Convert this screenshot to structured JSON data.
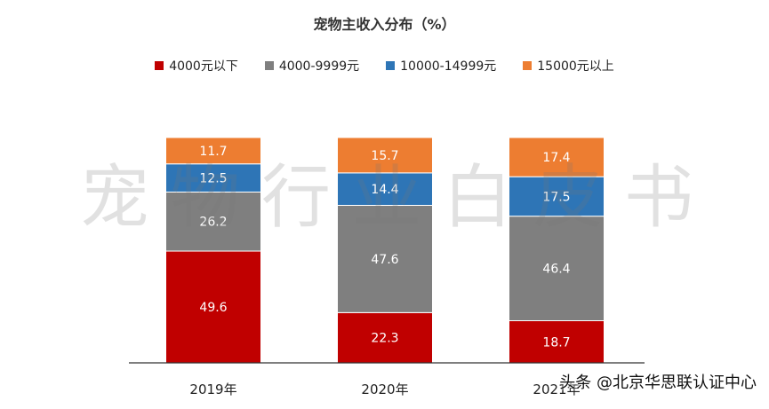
{
  "chart_data": {
    "type": "bar",
    "stacked": true,
    "title": "宠物主收入分布（%）",
    "categories": [
      "2019年",
      "2020年",
      "2021年"
    ],
    "series": [
      {
        "name": "4000元以下",
        "color": "#c00000",
        "values": [
          49.6,
          22.3,
          18.7
        ]
      },
      {
        "name": "4000-9999元",
        "color": "#7f7f7f",
        "values": [
          26.2,
          47.6,
          46.4
        ]
      },
      {
        "name": "10000-14999元",
        "color": "#2e75b6",
        "values": [
          12.5,
          14.4,
          17.5
        ]
      },
      {
        "name": "15000元以上",
        "color": "#ed7d31",
        "values": [
          11.7,
          15.7,
          17.4
        ]
      }
    ],
    "ylim": [
      0,
      100
    ],
    "legend_position": "top",
    "grid": false
  },
  "watermark": "宠物行业白皮书",
  "source": "头条 @北京华思联认证中心"
}
